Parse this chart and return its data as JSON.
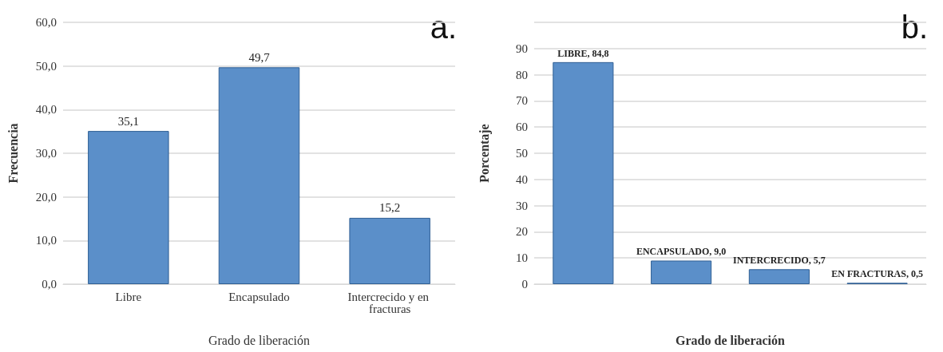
{
  "chart_data": [
    {
      "type": "bar",
      "categories": [
        "Libre",
        "Encapsulado",
        "Intercrecido y en fracturas"
      ],
      "values": [
        35.1,
        49.7,
        15.2
      ],
      "value_labels": [
        "35,1",
        "49,7",
        "15,2"
      ],
      "color": "#5b8fc9",
      "xlabel": "Grado de liberación",
      "ylabel": "Frecuencia",
      "ylim": [
        0,
        60
      ],
      "yticks": [
        {
          "value": 0,
          "label": "0,0"
        },
        {
          "value": 10,
          "label": "10,0"
        },
        {
          "value": 20,
          "label": "20,0"
        },
        {
          "value": 30,
          "label": "30,0"
        },
        {
          "value": 40,
          "label": "40,0"
        },
        {
          "value": 50,
          "label": "50,0"
        },
        {
          "value": 60,
          "label": "60,0"
        }
      ],
      "grid": "y",
      "annotations": [
        "a."
      ]
    },
    {
      "type": "bar",
      "categories": [
        null,
        null,
        null,
        null
      ],
      "values": [
        84.8,
        9.0,
        5.7,
        0.5
      ],
      "value_labels": [
        "LIBRE, 84,8",
        "ENCAPSULADO, 9,0",
        "INTERCRECIDO, 5,7",
        "EN FRACTURAS, 0,5"
      ],
      "color": "#5b8fc9",
      "xlabel": "Grado de liberación",
      "ylabel": "Porcentaje",
      "ylim": [
        0,
        100
      ],
      "yticks": [
        0,
        10,
        20,
        30,
        40,
        50,
        60,
        70,
        80,
        90,
        {
          "value": 100,
          "label": null
        }
      ],
      "grid": "y",
      "tick_labels": "y",
      "annotations": [
        "b."
      ]
    }
  ]
}
